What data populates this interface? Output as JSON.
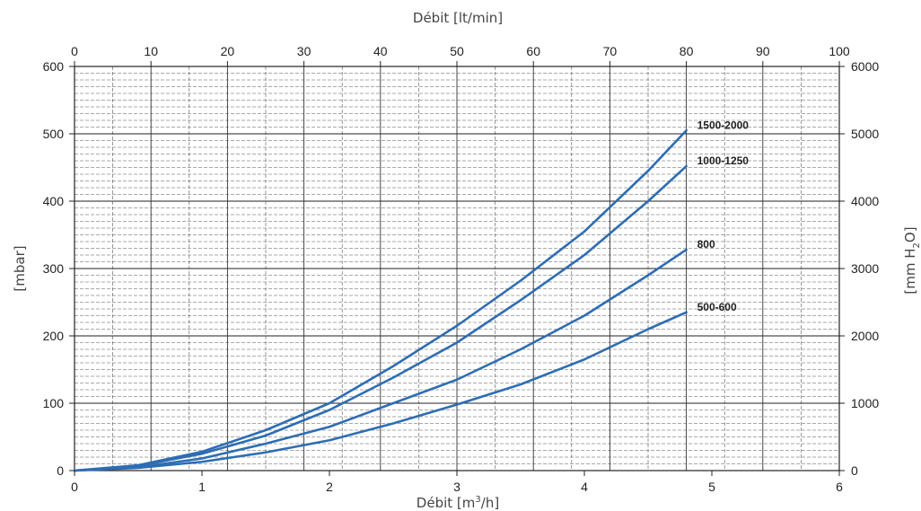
{
  "chart_data": {
    "type": "line",
    "top_axis_title": "Débit [lt/min]",
    "bottom_axis_title_main": "Débit [m",
    "bottom_axis_title_sup": "3",
    "bottom_axis_title_end": "/h]",
    "left_axis_title": "[mbar]",
    "right_axis_title_main": "[mm H",
    "right_axis_title_sub": "2",
    "right_axis_title_end": "O]",
    "xlim": [
      0,
      6
    ],
    "ylim": [
      0,
      600
    ],
    "top_xlim": [
      0,
      100
    ],
    "right_ylim": [
      0,
      6000
    ],
    "x_ticks": [
      "0",
      "1",
      "2",
      "3",
      "4",
      "5",
      "6"
    ],
    "top_ticks": [
      "0",
      "10",
      "20",
      "30",
      "40",
      "50",
      "60",
      "70",
      "80",
      "90",
      "100"
    ],
    "left_ticks": [
      "0",
      "100",
      "200",
      "300",
      "400",
      "500",
      "600"
    ],
    "right_ticks": [
      "0",
      "1000",
      "2000",
      "3000",
      "4000",
      "5000",
      "6000"
    ],
    "grid": true,
    "line_color": "#2e6db3",
    "series": [
      {
        "name": "1500-2000",
        "x": [
          0,
          0.5,
          1,
          1.5,
          2,
          2.5,
          3,
          3.5,
          4,
          4.5,
          4.8
        ],
        "y": [
          0,
          8,
          28,
          60,
          100,
          155,
          215,
          282,
          355,
          445,
          505
        ]
      },
      {
        "name": "1000-1250",
        "x": [
          0,
          0.5,
          1,
          1.5,
          2,
          2.5,
          3,
          3.5,
          4,
          4.5,
          4.8
        ],
        "y": [
          0,
          7,
          25,
          52,
          90,
          138,
          190,
          253,
          320,
          400,
          452
        ]
      },
      {
        "name": "800",
        "x": [
          0,
          0.5,
          1,
          1.5,
          2,
          2.5,
          3,
          3.5,
          4,
          4.5,
          4.8
        ],
        "y": [
          0,
          5,
          18,
          40,
          65,
          100,
          135,
          180,
          230,
          290,
          328
        ]
      },
      {
        "name": "500-600",
        "x": [
          0,
          0.5,
          1,
          1.5,
          2,
          2.5,
          3,
          3.5,
          4,
          4.5,
          4.8
        ],
        "y": [
          0,
          4,
          13,
          27,
          45,
          70,
          98,
          128,
          165,
          210,
          235
        ]
      }
    ]
  }
}
